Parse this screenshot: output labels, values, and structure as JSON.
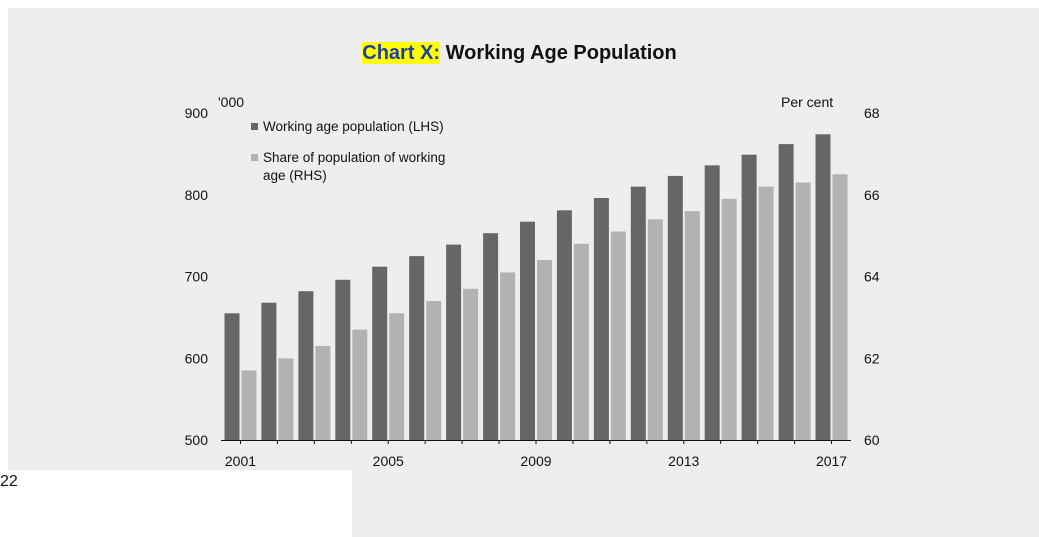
{
  "page": {
    "page_number": "22"
  },
  "chart_data": {
    "type": "bar",
    "title_highlight": "Chart X:",
    "title_main": "Working Age Population",
    "left_unit": "'000",
    "right_unit": "Per cent",
    "categories": [
      2001,
      2002,
      2003,
      2004,
      2005,
      2006,
      2007,
      2008,
      2009,
      2010,
      2011,
      2012,
      2013,
      2014,
      2015,
      2016,
      2017
    ],
    "x_tick_labels": [
      "2001",
      "2005",
      "2009",
      "2013",
      "2017"
    ],
    "ylim_left": [
      500,
      900
    ],
    "yticks_left": [
      500,
      600,
      700,
      800,
      900
    ],
    "ylim_right": [
      60,
      68
    ],
    "yticks_right": [
      60,
      62,
      64,
      66,
      68
    ],
    "legend_position": "top-left",
    "series": [
      {
        "name": "Working age population (LHS)",
        "axis": "left",
        "color": "#666666",
        "values": [
          655,
          668,
          682,
          696,
          712,
          725,
          739,
          753,
          767,
          781,
          796,
          810,
          823,
          836,
          849,
          862,
          874
        ]
      },
      {
        "name": "Share of population of working age (RHS)",
        "name_lines": [
          "Share of population of working",
          "age (RHS)"
        ],
        "axis": "right",
        "color": "#b2b2b2",
        "values": [
          61.7,
          62.0,
          62.3,
          62.7,
          63.1,
          63.4,
          63.7,
          64.1,
          64.4,
          64.8,
          65.1,
          65.4,
          65.6,
          65.9,
          66.2,
          66.3,
          66.5
        ]
      }
    ]
  }
}
